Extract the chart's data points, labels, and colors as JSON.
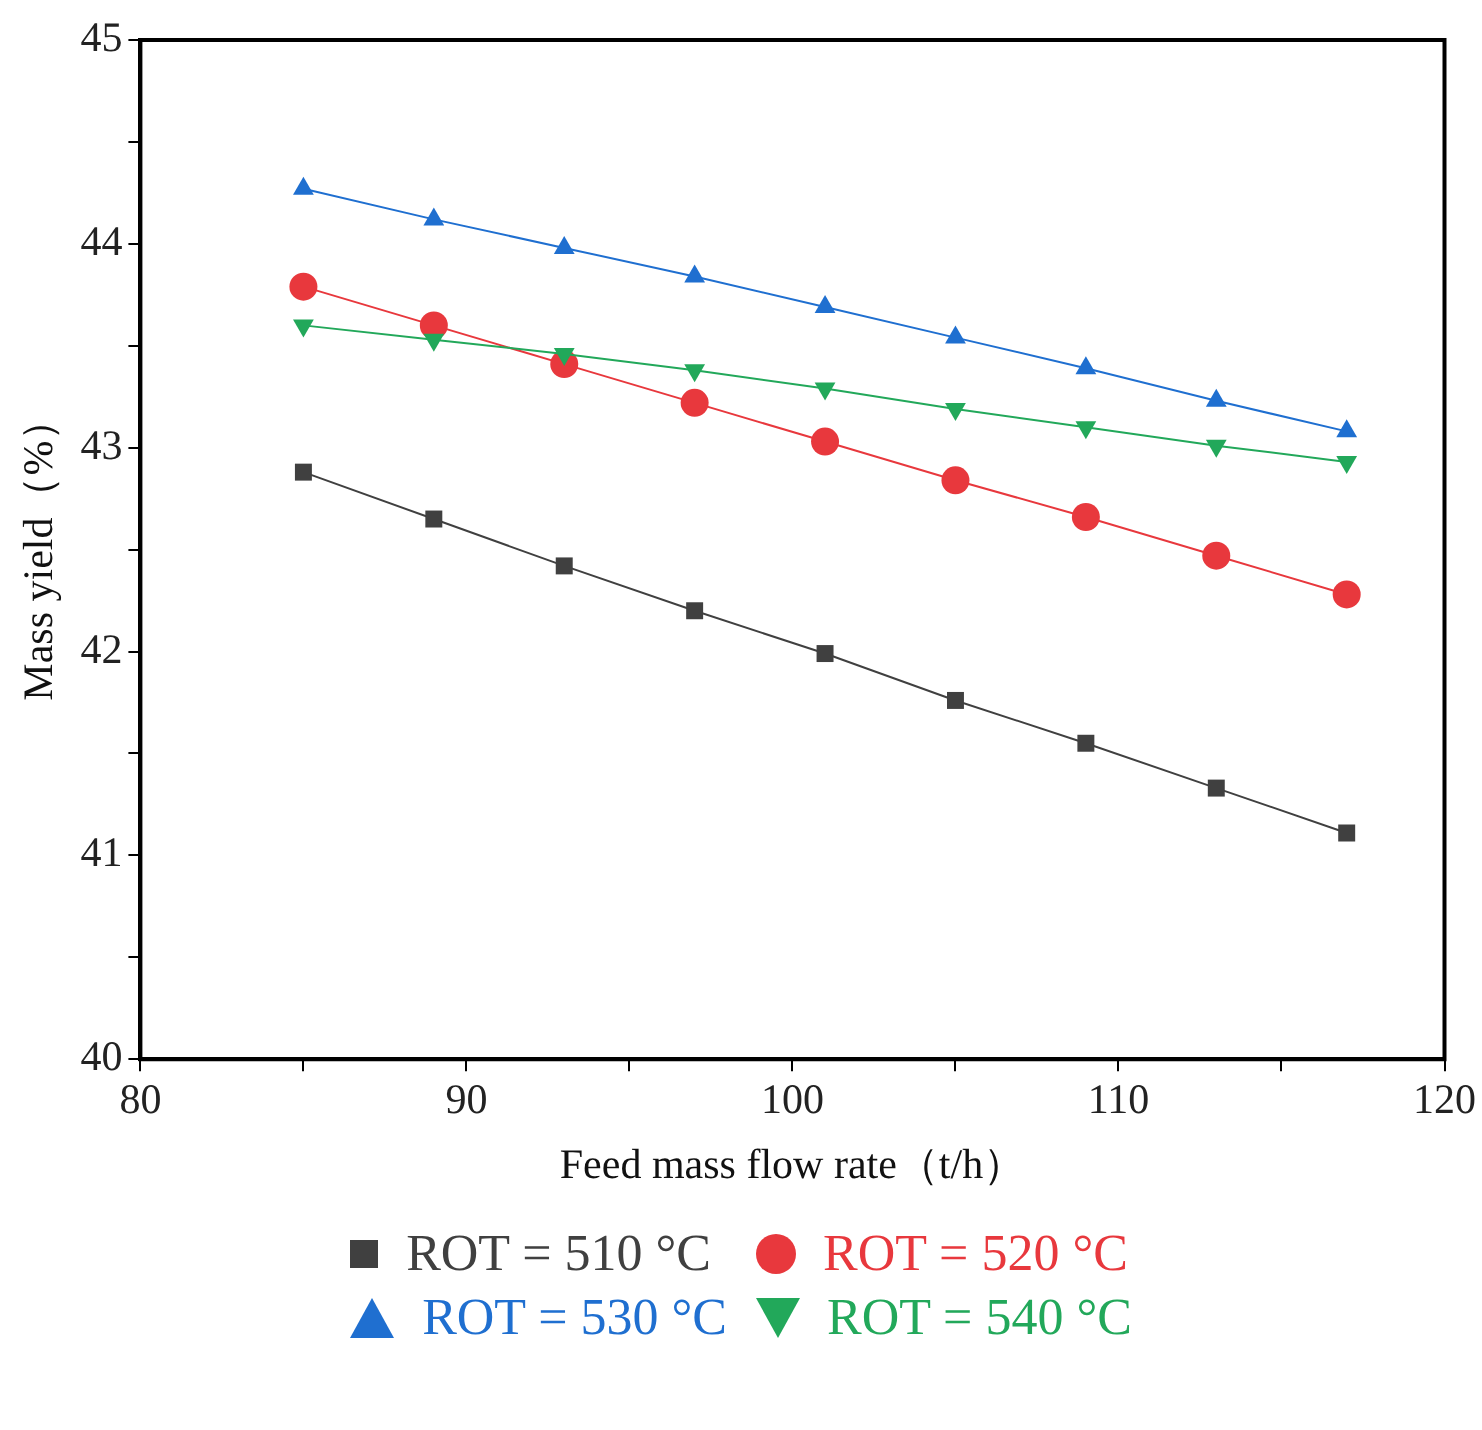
{
  "chart_data": {
    "type": "line",
    "xlabel": "Feed mass flow rate（t/h）",
    "ylabel": "Mass yield（%）",
    "x": [
      85,
      89,
      93,
      97,
      101,
      105,
      109,
      113,
      117
    ],
    "xlim": [
      80,
      120
    ],
    "xticks": [
      80,
      {
        "value": 85,
        "label": null
      },
      90,
      {
        "value": 95,
        "label": null
      },
      100,
      {
        "value": 105,
        "label": null
      },
      110,
      {
        "value": 115,
        "label": null
      },
      120
    ],
    "ylim": [
      40,
      45
    ],
    "yticks": [
      40,
      {
        "value": 40.5,
        "label": null
      },
      41,
      {
        "value": 41.5,
        "label": null
      },
      42,
      {
        "value": 42.5,
        "label": null
      },
      43,
      {
        "value": 43.5,
        "label": null
      },
      44,
      {
        "value": 44.5,
        "label": null
      },
      45
    ],
    "grid": false,
    "legend": "bottom",
    "line_style": "solid",
    "series": [
      {
        "name": "ROT = 510 °C",
        "color": "#404040",
        "marker": "square",
        "values": [
          42.88,
          42.65,
          42.42,
          42.2,
          41.99,
          41.76,
          41.55,
          41.33,
          41.11
        ]
      },
      {
        "name": "ROT = 520 °C",
        "color": "#e8383d",
        "marker": "circle",
        "values": [
          43.79,
          43.6,
          43.41,
          43.22,
          43.03,
          42.84,
          42.66,
          42.47,
          42.28
        ]
      },
      {
        "name": "ROT = 530 °C",
        "color": "#1f6fd0",
        "marker": "triangle",
        "values": [
          44.27,
          44.12,
          43.98,
          43.84,
          43.69,
          43.54,
          43.39,
          43.23,
          43.08
        ]
      },
      {
        "name": "ROT = 540 °C",
        "color": "#22a85a",
        "marker": "triangle-down",
        "values": [
          43.6,
          43.53,
          43.46,
          43.38,
          43.29,
          43.19,
          43.1,
          43.01,
          42.93
        ]
      }
    ]
  }
}
